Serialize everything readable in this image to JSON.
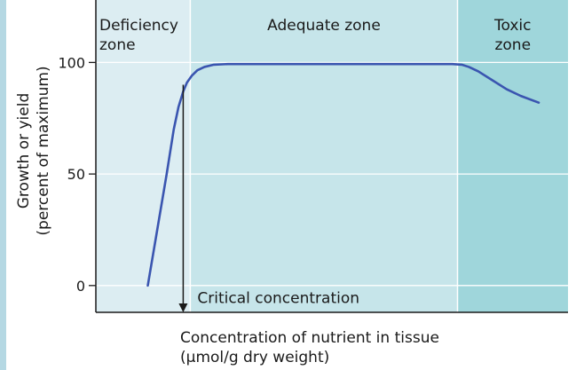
{
  "chart_data": {
    "type": "line",
    "ylabel": [
      "Growth or yield",
      "(percent of maximum)"
    ],
    "xlabel": [
      "Concentration of nutrient in tissue",
      "(µmol/g dry weight)"
    ],
    "ylim": [
      -12,
      128
    ],
    "xlim": [
      0,
      100
    ],
    "yticks": [
      {
        "value": 0,
        "label": "0"
      },
      {
        "value": 50,
        "label": "50"
      },
      {
        "value": 100,
        "label": "100"
      }
    ],
    "grid": true,
    "zones": [
      {
        "lines": [
          "Deficiency",
          "zone"
        ],
        "x_start": 0,
        "x_end": 20,
        "color": "#dcedf2"
      },
      {
        "lines": [
          "Adequate zone"
        ],
        "x_start": 20,
        "x_end": 76.6,
        "color": "#c6e5ea"
      },
      {
        "lines": [
          "Toxic",
          "zone"
        ],
        "x_start": 76.6,
        "x_end": 100,
        "color": "#9fd6db"
      }
    ],
    "series": [
      {
        "x": [
          11,
          13,
          15,
          16.5,
          17.5,
          18.5,
          19.3,
          20.3,
          21.5,
          23,
          25,
          28,
          33,
          45,
          60,
          72,
          75.5,
          77.5,
          79,
          81,
          84,
          87,
          90,
          93.8
        ],
        "y": [
          0,
          25,
          50,
          70,
          80,
          87,
          91,
          94,
          96.5,
          98,
          99,
          99.3,
          99.3,
          99.3,
          99.3,
          99.3,
          99.3,
          99,
          98,
          96,
          92,
          88,
          85,
          82
        ],
        "color": "#3a55b0"
      }
    ],
    "annotations": [
      {
        "text": "Critical concentration",
        "x": 18.5,
        "y_from": 90,
        "y_to": -12
      }
    ]
  }
}
